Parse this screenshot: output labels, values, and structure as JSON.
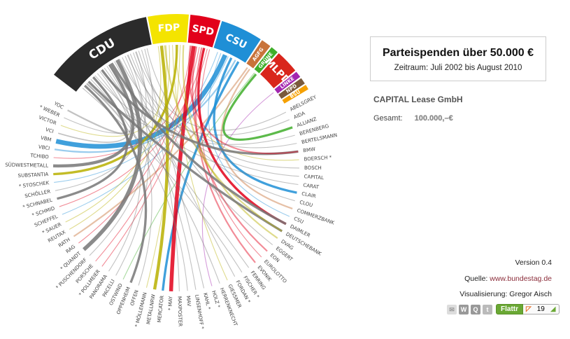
{
  "panel": {
    "title": "Parteispenden über 50.000 €",
    "subtitle": "Zeitraum: Juli 2002 bis August 2010",
    "selected_donor": "CAPITAL Lease GmbH",
    "total_label": "Gesamt:",
    "total_value": "100.000,–€"
  },
  "footer": {
    "version": "Version 0.4",
    "source_label": "Quelle: ",
    "source_link": "www.bundestag.de",
    "credit": "Visualisierung: Gregor Aisch",
    "share_icons": [
      "mail-icon",
      "wordpress-icon",
      "q-icon",
      "twitter-icon"
    ],
    "flattr_label": "Flattr",
    "flattr_count": "19"
  },
  "parties": [
    {
      "name": "CDU",
      "color": "#2b2b2b"
    },
    {
      "name": "FDP",
      "color": "#f4e400"
    },
    {
      "name": "SPD",
      "color": "#e2001a"
    },
    {
      "name": "CSU",
      "color": "#1f8fd6"
    },
    {
      "name": "AGFG",
      "color": "#c8733a"
    },
    {
      "name": "GRÜNE",
      "color": "#3fae2a"
    },
    {
      "name": "MLPD",
      "color": "#d9261c"
    },
    {
      "name": "LINKE",
      "color": "#a326b0"
    },
    {
      "name": "NPD",
      "color": "#7a5a3c"
    },
    {
      "name": "BSU",
      "color": "#f5a000"
    }
  ],
  "donors": [
    "ABELSGREY",
    "AIDA",
    "ALLIANZ",
    "BERENBERG",
    "BERTELSMANN",
    "BMW",
    "BOERSCH *",
    "BOSCH",
    "CAPITAL",
    "CARAT",
    "CLAIR",
    "CLOU",
    "COMMERZBANK",
    "CSU",
    "DAIMLER",
    "DEUTSCHEBANK",
    "DVAG",
    "EGGERT",
    "EON",
    "EUROLOTTO",
    "EVONIK",
    "FERRING",
    "FISCHER *",
    "FORDAN *",
    "GIESSMER",
    "HERRENKNECHT",
    "HOLZ *",
    "KAHL *",
    "LINSENHOFF *",
    "MAV",
    "MAXPOSTER",
    "* MAY",
    "MERCATOR",
    "METALLNRW",
    "* MÖLLEMANN",
    "OFFEN",
    "OPPENHEIM",
    "OSTWIND",
    "PACELLI",
    "PANORAMA",
    "* POLLMEIER",
    "PORSCHE",
    "* PUSCHENDORF",
    "* QUANDT",
    "RAG",
    "RATH",
    "REUTAX",
    "* SAUER",
    "SCHEFFEL",
    "* SCHMID",
    "* SCHNABEL",
    "SCHÖLLER",
    "* STOSCHEK",
    "SUBSTANTIA",
    "SÜDWESTMETALL",
    "TCHIBO",
    "VBCI",
    "VBM",
    "VCI",
    "VICTOR",
    "* WEBER",
    "YOC"
  ],
  "links": [
    [
      "VBM",
      "CSU",
      6
    ],
    [
      "VBCI",
      "CSU",
      2
    ],
    [
      "VCI",
      "CDU",
      1.5
    ],
    [
      "VICTOR",
      "FDP",
      1
    ],
    [
      "* WEBER",
      "CDU",
      1
    ],
    [
      "YOC",
      "CDU",
      2
    ],
    [
      "TCHIBO",
      "SPD",
      1
    ],
    [
      "SÜDWESTMETALL",
      "CDU",
      4
    ],
    [
      "SUBSTANTIA",
      "FDP",
      3
    ],
    [
      "* STOSCHEK",
      "CSU",
      1
    ],
    [
      "SCHÖLLER",
      "CDU",
      1
    ],
    [
      "* SCHNABEL",
      "CDU",
      3
    ],
    [
      "* SCHMID",
      "SPD",
      1
    ],
    [
      "SCHEFFEL",
      "CSU",
      1
    ],
    [
      "* SAUER",
      "FDP",
      1
    ],
    [
      "REUTAX",
      "FDP",
      1
    ],
    [
      "RATH",
      "AGFG",
      2
    ],
    [
      "RAG",
      "SPD",
      1
    ],
    [
      "* QUANDT",
      "CDU",
      5
    ],
    [
      "* PUSCHENDORF",
      "CDU",
      1
    ],
    [
      "PORSCHE",
      "SPD",
      1
    ],
    [
      "* POLLMEIER",
      "SPD",
      1
    ],
    [
      "PANORAMA",
      "CDU",
      1
    ],
    [
      "PACELLI",
      "CDU",
      1
    ],
    [
      "OSTWIND",
      "GRÜNE",
      1
    ],
    [
      "OPPENHEIM",
      "CDU",
      3
    ],
    [
      "OFFEN",
      "CDU",
      1
    ],
    [
      "* MÖLLEMANN",
      "FDP",
      1
    ],
    [
      "METALLNRW",
      "FDP",
      4
    ],
    [
      "MERCATOR",
      "CSU",
      3
    ],
    [
      "* MAY",
      "SPD",
      5
    ],
    [
      "MAXPOSTER",
      "CDU",
      1
    ],
    [
      "MAV",
      "CDU",
      1
    ],
    [
      "LINSENHOFF *",
      "CDU",
      1
    ],
    [
      "KAHL *",
      "CDU",
      1
    ],
    [
      "HOLZ *",
      "LINKE",
      1
    ],
    [
      "HERRENKNECHT",
      "CDU",
      1
    ],
    [
      "GIESSMER",
      "FDP",
      1
    ],
    [
      "FORDAN *",
      "CDU",
      1
    ],
    [
      "FISCHER *",
      "CDU",
      1
    ],
    [
      "FERRING",
      "CDU",
      1
    ],
    [
      "EVONIK",
      "SPD",
      2
    ],
    [
      "EUROLOTTO",
      "SPD",
      1
    ],
    [
      "EON",
      "SPD",
      2
    ],
    [
      "EGGERT",
      "CDU",
      1
    ],
    [
      "DVAG",
      "FDP",
      2
    ],
    [
      "DEUTSCHEBANK",
      "CDU",
      3
    ],
    [
      "DEUTSCHEBANK",
      "FDP",
      2
    ],
    [
      "DAIMLER",
      "SPD",
      3
    ],
    [
      "DAIMLER",
      "CDU",
      3
    ],
    [
      "CSU",
      "CSU",
      1
    ],
    [
      "COMMERZBANK",
      "AGFG",
      2
    ],
    [
      "CLOU",
      "CDU",
      1
    ],
    [
      "CLAIR",
      "CSU",
      3
    ],
    [
      "CARAT",
      "CDU",
      1
    ],
    [
      "CAPITAL",
      "CDU",
      1
    ],
    [
      "BOSCH",
      "CDU",
      1
    ],
    [
      "BOERSCH *",
      "FDP",
      1
    ],
    [
      "BMW",
      "CDU",
      3
    ],
    [
      "BMW",
      "SPD",
      2
    ],
    [
      "BERTELSMANN",
      "CDU",
      1
    ],
    [
      "BERENBERG",
      "CDU",
      1
    ],
    [
      "ALLIANZ",
      "GRÜNE",
      3
    ],
    [
      "AIDA",
      "CDU",
      1
    ],
    [
      "ABELSGREY",
      "CDU",
      1
    ]
  ]
}
